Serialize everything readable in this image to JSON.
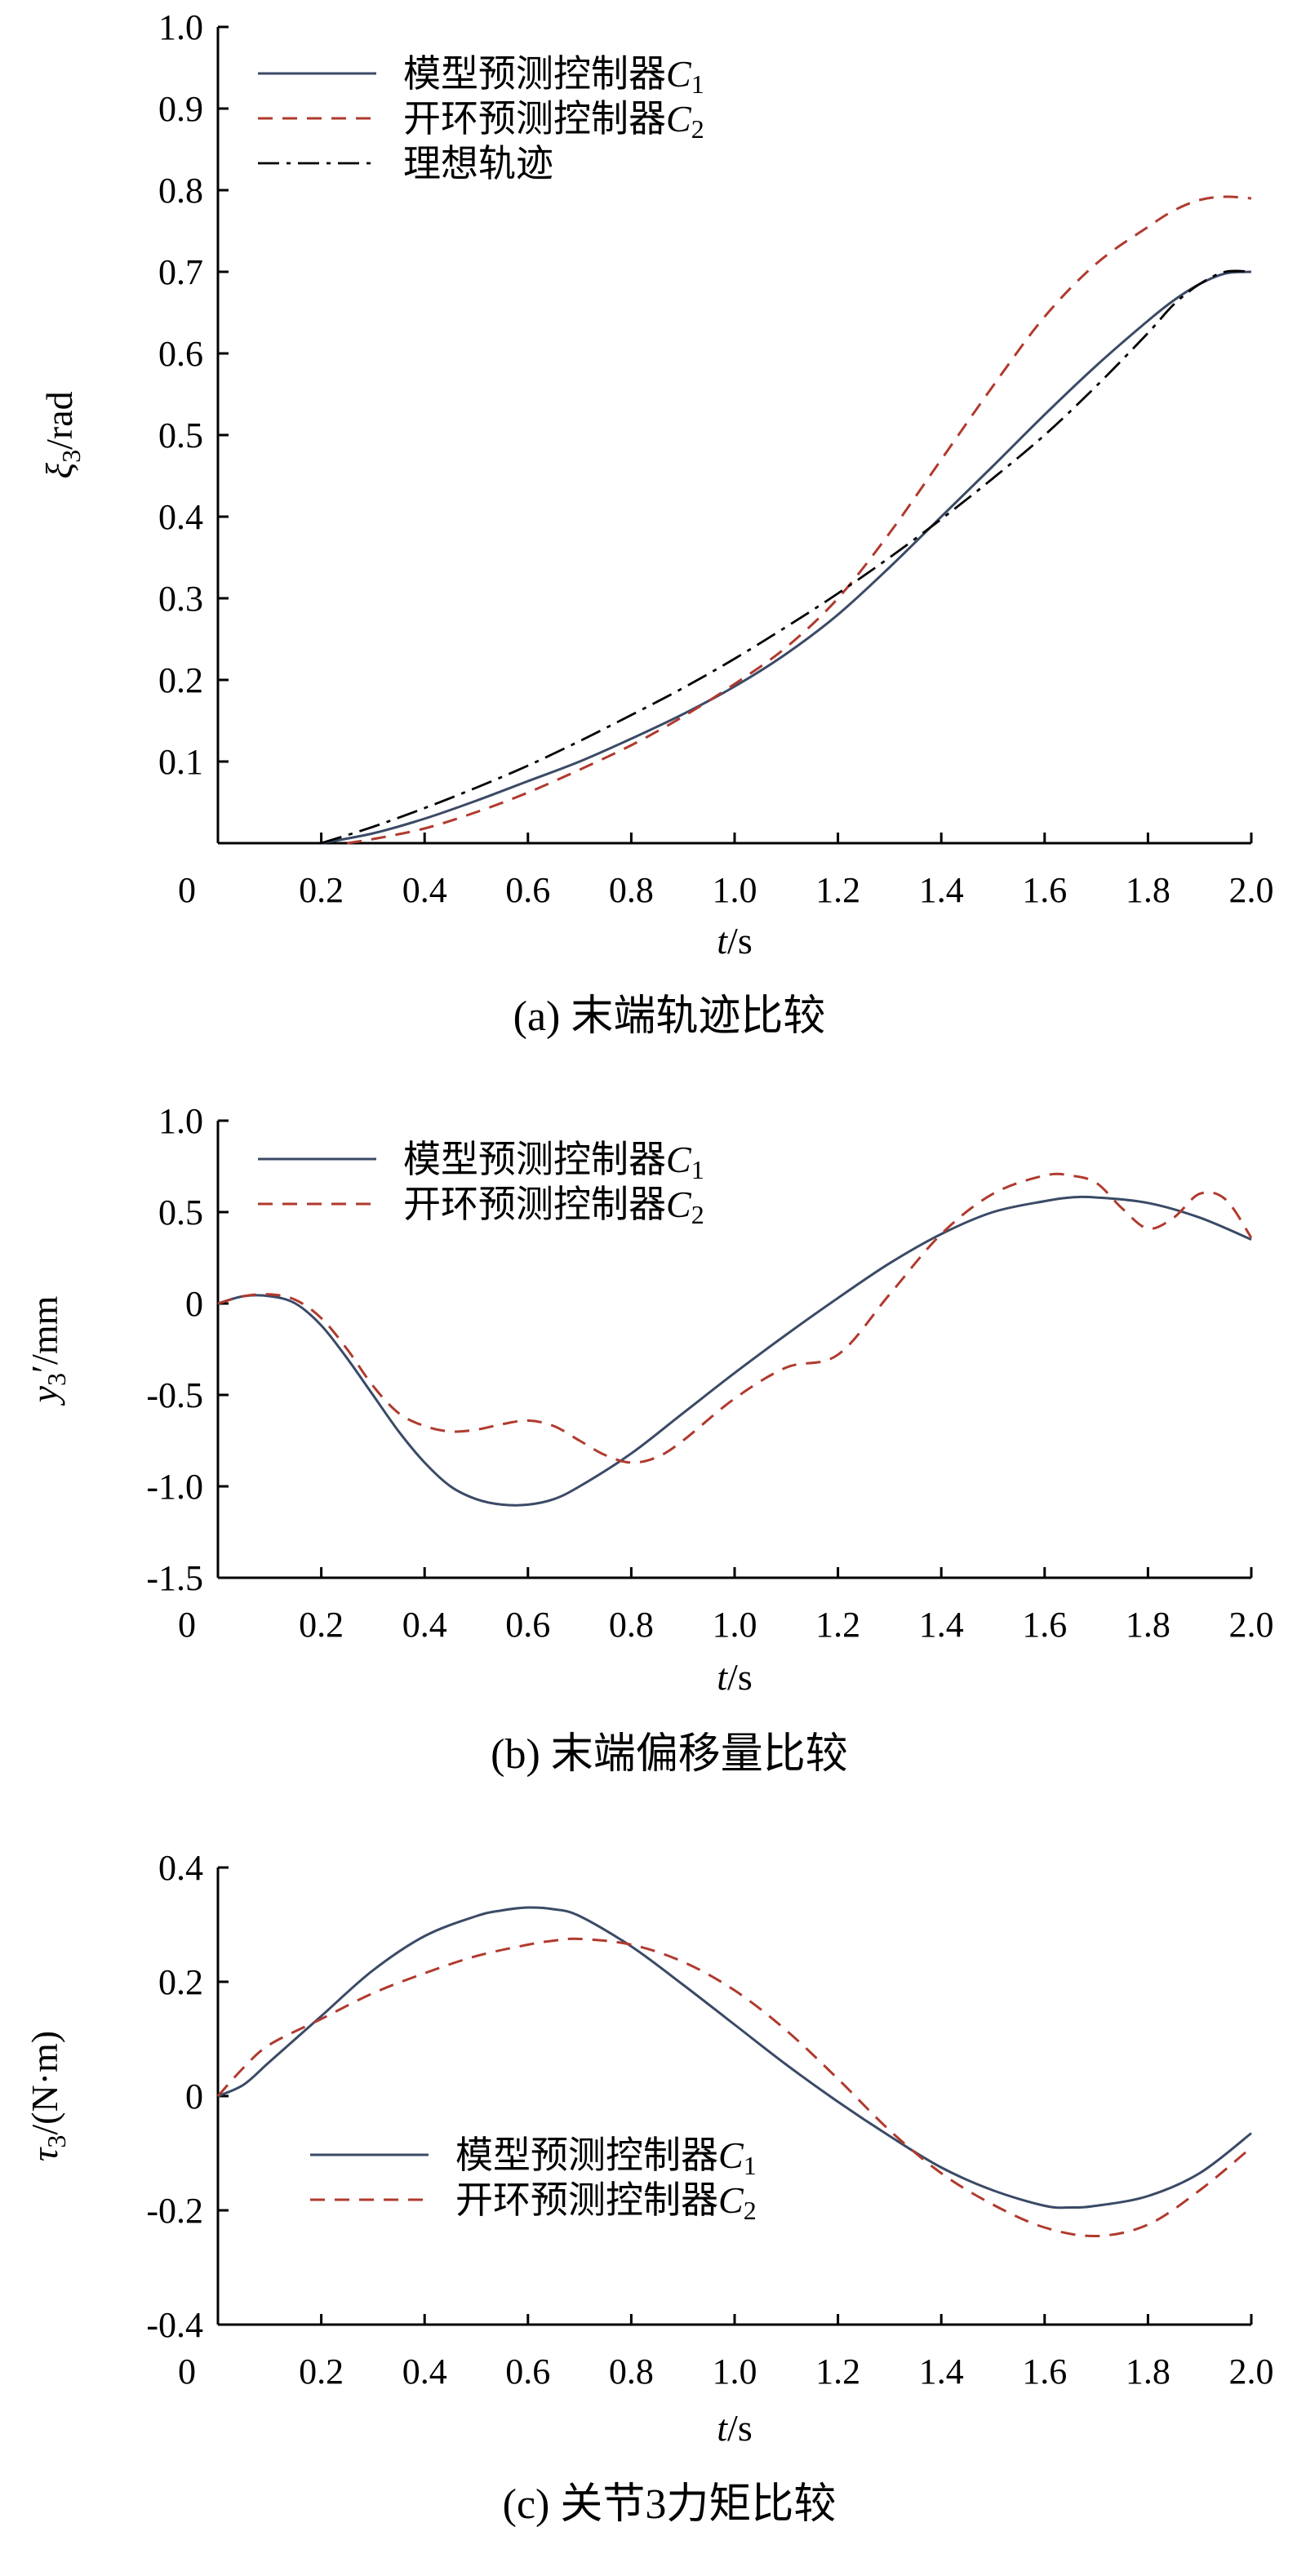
{
  "colors": {
    "model_predictive": "#3a4a66",
    "open_loop": "#b03a2e",
    "ideal": "#000000"
  },
  "chart_data": [
    {
      "type": "line",
      "caption": "(a)  末端轨迹比较",
      "xlabel_var": "t",
      "xlabel_unit": "/s",
      "ylabel_var": "ξ",
      "ylabel_sub": "3",
      "ylabel_unit": "/rad",
      "xlim": [
        0,
        2.0
      ],
      "ylim": [
        0,
        1.0
      ],
      "xticks": [
        "0",
        "0.2",
        "0.4",
        "0.6",
        "0.8",
        "1.0",
        "1.2",
        "1.4",
        "1.6",
        "1.8",
        "2.0"
      ],
      "yticks": [
        "0.1",
        "0.2",
        "0.3",
        "0.4",
        "0.5",
        "0.6",
        "0.7",
        "0.8",
        "0.9",
        "1.0"
      ],
      "legend_position": "top-left",
      "series": [
        {
          "name": "模型预测控制器",
          "name_var": "C",
          "name_sub": "1",
          "style": "solid",
          "x": [
            0.2,
            0.3,
            0.4,
            0.5,
            0.6,
            0.7,
            0.8,
            0.9,
            1.0,
            1.1,
            1.2,
            1.3,
            1.4,
            1.5,
            1.6,
            1.7,
            1.8,
            1.85,
            1.9,
            1.95,
            2.0
          ],
          "y": [
            0.0,
            0.012,
            0.03,
            0.052,
            0.076,
            0.1,
            0.128,
            0.158,
            0.192,
            0.232,
            0.28,
            0.338,
            0.4,
            0.462,
            0.525,
            0.585,
            0.64,
            0.665,
            0.685,
            0.698,
            0.7
          ]
        },
        {
          "name": "开环预测控制器",
          "name_var": "C",
          "name_sub": "2",
          "style": "dashed",
          "x": [
            0.25,
            0.3,
            0.4,
            0.5,
            0.6,
            0.7,
            0.8,
            0.9,
            1.0,
            1.1,
            1.2,
            1.3,
            1.4,
            1.5,
            1.6,
            1.7,
            1.8,
            1.85,
            1.9,
            1.95,
            2.0
          ],
          "y": [
            0.0,
            0.005,
            0.018,
            0.038,
            0.062,
            0.09,
            0.12,
            0.155,
            0.195,
            0.24,
            0.3,
            0.38,
            0.47,
            0.56,
            0.645,
            0.71,
            0.755,
            0.775,
            0.788,
            0.792,
            0.79
          ]
        },
        {
          "name": "理想轨迹",
          "style": "dashdot",
          "x": [
            0.2,
            0.3,
            0.4,
            0.5,
            0.6,
            0.7,
            0.8,
            0.9,
            1.0,
            1.1,
            1.2,
            1.3,
            1.4,
            1.5,
            1.6,
            1.7,
            1.8,
            1.85,
            1.9,
            1.95,
            2.0
          ],
          "y": [
            0.0,
            0.02,
            0.043,
            0.068,
            0.095,
            0.125,
            0.157,
            0.19,
            0.226,
            0.265,
            0.306,
            0.35,
            0.397,
            0.447,
            0.5,
            0.56,
            0.625,
            0.66,
            0.685,
            0.7,
            0.7
          ]
        }
      ]
    },
    {
      "type": "line",
      "caption": "(b)  末端偏移量比较",
      "xlabel_var": "t",
      "xlabel_unit": "/s",
      "ylabel_var": "y",
      "ylabel_sub": "3",
      "ylabel_unit": "′/mm",
      "xlim": [
        0,
        2.0
      ],
      "ylim": [
        -1.5,
        1.0
      ],
      "xticks": [
        "0",
        "0.2",
        "0.4",
        "0.6",
        "0.8",
        "1.0",
        "1.2",
        "1.4",
        "1.6",
        "1.8",
        "2.0"
      ],
      "yticks": [
        "-1.5",
        "-1.0",
        "-0.5",
        "0",
        "0.5",
        "1.0"
      ],
      "legend_position": "top-left",
      "series": [
        {
          "name": "模型预测控制器",
          "name_var": "C",
          "name_sub": "1",
          "style": "solid",
          "x": [
            0.0,
            0.05,
            0.1,
            0.15,
            0.2,
            0.25,
            0.3,
            0.35,
            0.4,
            0.45,
            0.5,
            0.55,
            0.6,
            0.65,
            0.7,
            0.8,
            0.9,
            1.0,
            1.1,
            1.2,
            1.3,
            1.4,
            1.5,
            1.6,
            1.65,
            1.7,
            1.8,
            1.9,
            2.0
          ],
          "y": [
            0.0,
            0.04,
            0.04,
            0.0,
            -0.12,
            -0.3,
            -0.5,
            -0.7,
            -0.87,
            -1.0,
            -1.07,
            -1.1,
            -1.1,
            -1.07,
            -1.0,
            -0.82,
            -0.6,
            -0.38,
            -0.17,
            0.03,
            0.22,
            0.38,
            0.5,
            0.56,
            0.58,
            0.58,
            0.55,
            0.47,
            0.35
          ]
        },
        {
          "name": "开环预测控制器",
          "name_var": "C",
          "name_sub": "2",
          "style": "dashed",
          "x": [
            0.0,
            0.05,
            0.1,
            0.15,
            0.2,
            0.25,
            0.3,
            0.35,
            0.4,
            0.45,
            0.5,
            0.55,
            0.6,
            0.65,
            0.7,
            0.75,
            0.8,
            0.85,
            0.9,
            1.0,
            1.1,
            1.2,
            1.3,
            1.4,
            1.5,
            1.6,
            1.65,
            1.7,
            1.75,
            1.8,
            1.85,
            1.9,
            1.95,
            2.0
          ],
          "y": [
            0.0,
            0.04,
            0.05,
            0.02,
            -0.08,
            -0.25,
            -0.45,
            -0.6,
            -0.67,
            -0.7,
            -0.69,
            -0.66,
            -0.64,
            -0.67,
            -0.75,
            -0.83,
            -0.87,
            -0.84,
            -0.75,
            -0.52,
            -0.35,
            -0.28,
            0.05,
            0.38,
            0.6,
            0.7,
            0.7,
            0.66,
            0.52,
            0.41,
            0.47,
            0.6,
            0.57,
            0.36
          ]
        }
      ]
    },
    {
      "type": "line",
      "caption": "(c)  关节3力矩比较",
      "xlabel_var": "t",
      "xlabel_unit": "/s",
      "ylabel_var": "τ",
      "ylabel_sub": "3",
      "ylabel_unit": "/(N·m)",
      "xlim": [
        0,
        2.0
      ],
      "ylim": [
        -0.4,
        0.4
      ],
      "xticks": [
        "0",
        "0.2",
        "0.4",
        "0.6",
        "0.8",
        "1.0",
        "1.2",
        "1.4",
        "1.6",
        "1.8",
        "2.0"
      ],
      "yticks": [
        "-0.4",
        "-0.2",
        "0",
        "0.2",
        "0.4"
      ],
      "legend_position": "bottom-left",
      "series": [
        {
          "name": "模型预测控制器",
          "name_var": "C",
          "name_sub": "1",
          "style": "solid",
          "x": [
            0.0,
            0.05,
            0.1,
            0.2,
            0.3,
            0.4,
            0.5,
            0.55,
            0.6,
            0.65,
            0.7,
            0.8,
            0.9,
            1.0,
            1.1,
            1.2,
            1.3,
            1.4,
            1.5,
            1.6,
            1.65,
            1.7,
            1.8,
            1.9,
            2.0
          ],
          "y": [
            0.0,
            0.02,
            0.06,
            0.14,
            0.22,
            0.28,
            0.315,
            0.325,
            0.33,
            0.327,
            0.315,
            0.262,
            0.195,
            0.125,
            0.055,
            -0.01,
            -0.07,
            -0.125,
            -0.165,
            -0.192,
            -0.195,
            -0.192,
            -0.175,
            -0.135,
            -0.065
          ]
        },
        {
          "name": "开环预测控制器",
          "name_var": "C",
          "name_sub": "2",
          "style": "dashed",
          "x": [
            0.0,
            0.05,
            0.1,
            0.2,
            0.3,
            0.4,
            0.5,
            0.6,
            0.65,
            0.7,
            0.8,
            0.9,
            1.0,
            1.1,
            1.2,
            1.3,
            1.4,
            1.5,
            1.6,
            1.7,
            1.8,
            1.9,
            2.0
          ],
          "y": [
            0.0,
            0.05,
            0.09,
            0.135,
            0.18,
            0.215,
            0.245,
            0.265,
            0.272,
            0.275,
            0.265,
            0.235,
            0.185,
            0.115,
            0.03,
            -0.06,
            -0.135,
            -0.19,
            -0.23,
            -0.245,
            -0.225,
            -0.165,
            -0.09
          ]
        }
      ]
    }
  ]
}
